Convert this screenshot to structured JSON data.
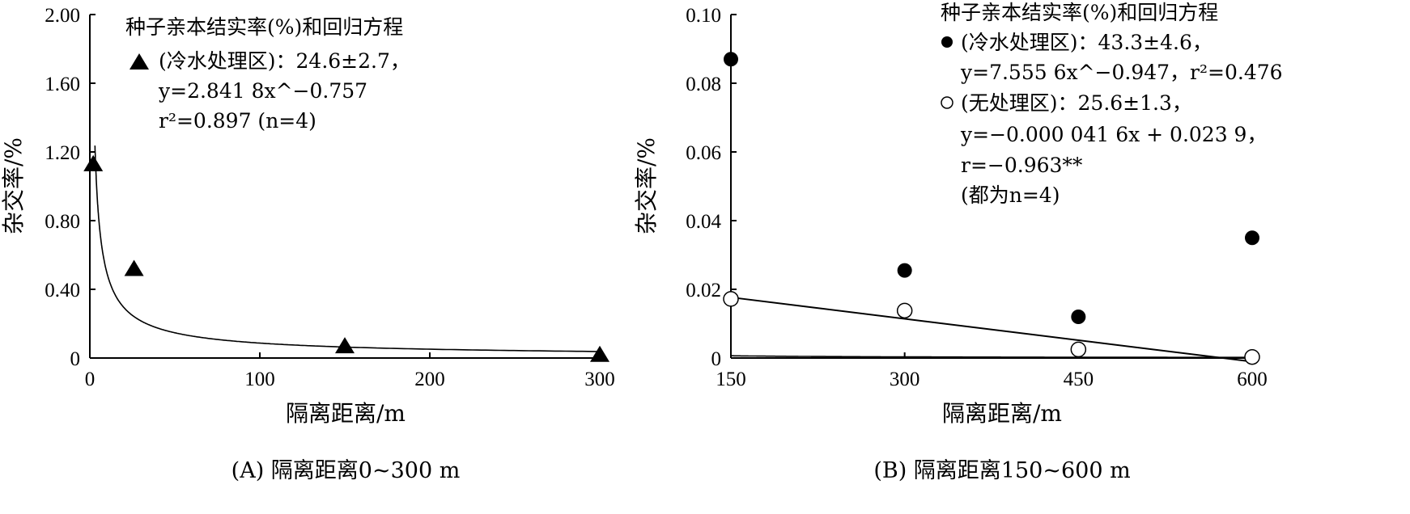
{
  "chart_data": [
    {
      "type": "scatter",
      "panel": "A",
      "caption": "(A) 隔离距离0~300 m",
      "xlabel": "隔离距离/m",
      "ylabel": "杂交率/%",
      "xlim": [
        0,
        300
      ],
      "ylim": [
        0,
        2.0
      ],
      "xticks": [
        "0",
        "100",
        "200",
        "300"
      ],
      "yticks": [
        "0",
        "0.40",
        "0.80",
        "1.20",
        "1.60",
        "2.00"
      ],
      "xtick_values": [
        0,
        100,
        200,
        300
      ],
      "ytick_values": [
        0,
        0.4,
        0.8,
        1.2,
        1.6,
        2.0
      ],
      "legend_position": "top-right",
      "legend": {
        "title": "种子亲本结实率(%)和回归方程",
        "line1": "(冷水处理区)：24.6±2.7，",
        "line2": "y=2.841 8x^−0.757",
        "line3": "r²=0.897 (n=4)"
      },
      "series": [
        {
          "name": "(冷水处理区)",
          "marker": "triangle",
          "x": [
            2,
            26,
            150,
            300
          ],
          "y": [
            1.13,
            0.52,
            0.07,
            0.02
          ]
        }
      ],
      "fits": [
        {
          "kind": "power",
          "a": 2.8418,
          "b": -0.757,
          "x_from": 3,
          "x_to": 300
        }
      ]
    },
    {
      "type": "scatter",
      "panel": "B",
      "caption": "(B) 隔离距离150~600 m",
      "xlabel": "隔离距离/m",
      "ylabel": "杂交率/%",
      "xlim": [
        150,
        600
      ],
      "ylim": [
        0,
        0.1
      ],
      "xticks": [
        "150",
        "300",
        "450",
        "600"
      ],
      "yticks": [
        "0",
        "0.02",
        "0.04",
        "0.06",
        "0.08",
        "0.10"
      ],
      "xtick_values": [
        150,
        300,
        450,
        600
      ],
      "ytick_values": [
        0,
        0.02,
        0.04,
        0.06,
        0.08,
        0.1
      ],
      "legend_position": "top-right",
      "legend": {
        "title": "种子亲本结实率(%)和回归方程",
        "line1": "(冷水处理区)：43.3±4.6，",
        "line2": "y=7.555 6x^−0.947，r²=0.476",
        "line3": "(无处理区)：25.6±1.3，",
        "line4": "y=−0.000 041 6x + 0.023 9，",
        "line5": "r=−0.963**",
        "line6": "(都为n=4)"
      },
      "series": [
        {
          "name": "(冷水处理区)",
          "marker": "filled-circle",
          "x": [
            150,
            300,
            450,
            600
          ],
          "y": [
            0.087,
            0.0255,
            0.012,
            0.035
          ]
        },
        {
          "name": "(无处理区)",
          "marker": "open-circle",
          "x": [
            150,
            300,
            450,
            600
          ],
          "y": [
            0.0172,
            0.0138,
            0.0025,
            0.0003
          ]
        }
      ],
      "fits": [
        {
          "kind": "power",
          "a": 7.5556,
          "b": -0.947,
          "x_from": 150,
          "x_to": 600
        },
        {
          "kind": "linear",
          "slope": -4.16e-05,
          "intercept": 0.0239,
          "x_from": 150,
          "x_to": 600
        }
      ]
    }
  ]
}
